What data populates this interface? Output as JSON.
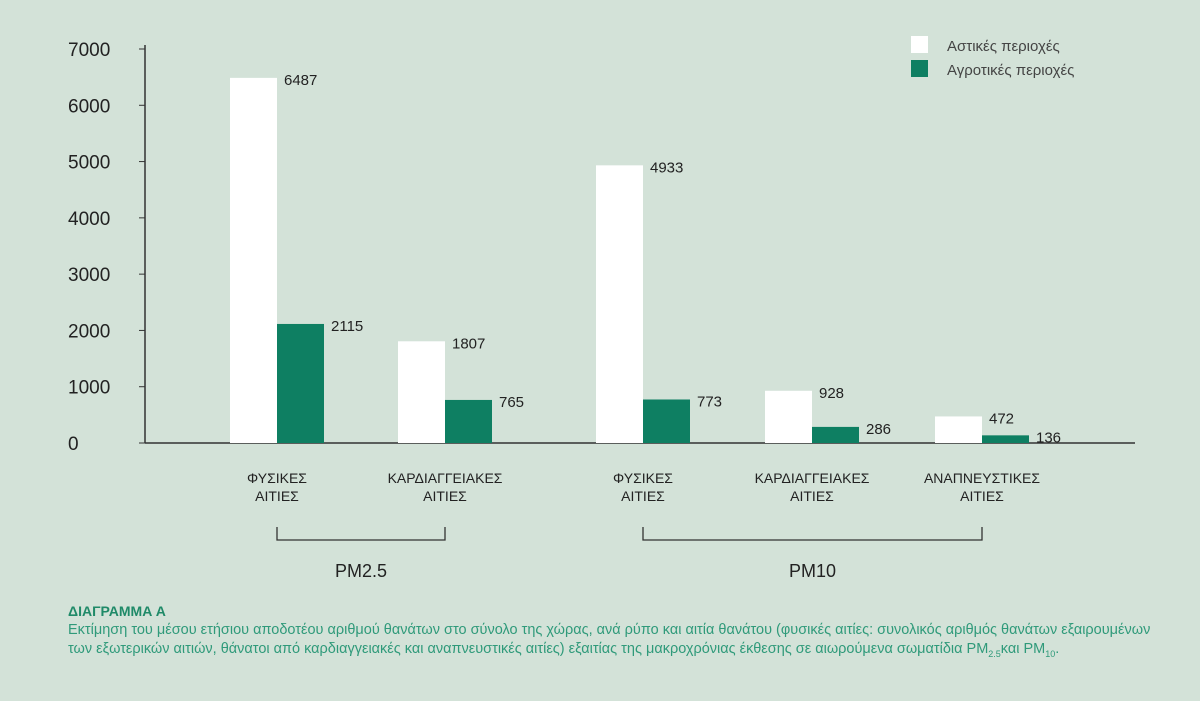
{
  "chart_data": {
    "type": "bar",
    "categories": [
      "ΦΥΣΙΚΕΣ ΑΙΤΙΕΣ",
      "ΚΑΡΔΙΑΓΓΕΙΑΚΕΣ ΑΙΤΙΕΣ",
      "ΦΥΣΙΚΕΣ ΑΙΤΙΕΣ",
      "ΚΑΡΔΙΑΓΓΕΙΑΚΕΣ ΑΙΤΙΕΣ",
      "ΑΝΑΠΝΕΥΣΤΙΚΕΣ ΑΙΤΙΕΣ"
    ],
    "category_lines": [
      [
        "ΦΥΣΙΚΕΣ",
        "ΑΙΤΙΕΣ"
      ],
      [
        "ΚΑΡΔΙΑΓΓΕΙΑΚΕΣ",
        "ΑΙΤΙΕΣ"
      ],
      [
        "ΦΥΣΙΚΕΣ",
        "ΑΙΤΙΕΣ"
      ],
      [
        "ΚΑΡΔΙΑΓΓΕΙΑΚΕΣ",
        "ΑΙΤΙΕΣ"
      ],
      [
        "ΑΝΑΠΝΕΥΣΤΙΚΕΣ",
        "ΑΙΤΙΕΣ"
      ]
    ],
    "groups": [
      {
        "label": "PM2.5",
        "from": 0,
        "to": 1
      },
      {
        "label": "PM10",
        "from": 2,
        "to": 4
      }
    ],
    "series": [
      {
        "name": "Αστικές περιοχές",
        "color": "#ffffff",
        "values": [
          6487,
          1807,
          4933,
          928,
          472
        ]
      },
      {
        "name": "Αγροτικές περιοχές",
        "color": "#0e7f62",
        "values": [
          2115,
          765,
          773,
          286,
          136
        ]
      }
    ],
    "yticks": [
      0,
      1000,
      2000,
      3000,
      4000,
      5000,
      6000,
      7000
    ],
    "ylim": [
      0,
      7000
    ],
    "legend_position": "top-right",
    "xlabel": "",
    "ylabel": ""
  },
  "caption": {
    "title": "ΔΙΑΓΡΑΜΜΑ Α",
    "text": "Εκτίμηση του μέσου ετήσιου αποδοτέου αριθμού θανάτων στο σύνολο της χώρας, ανά ρύπο και αιτία θανάτου (φυσικές αιτίες: συνολικός αριθμός θανάτων εξαιρουμένων των εξωτερικών αιτιών, θάνατοι από καρδιαγγειακές και αναπνευστικές αιτίες) εξαιτίας της μακροχρόνιας έκθεσης σε αιωρούμενα σωματίδια PM",
    "sub1": "2.5",
    "mid": "και PM",
    "sub2": "10",
    "end": "."
  }
}
